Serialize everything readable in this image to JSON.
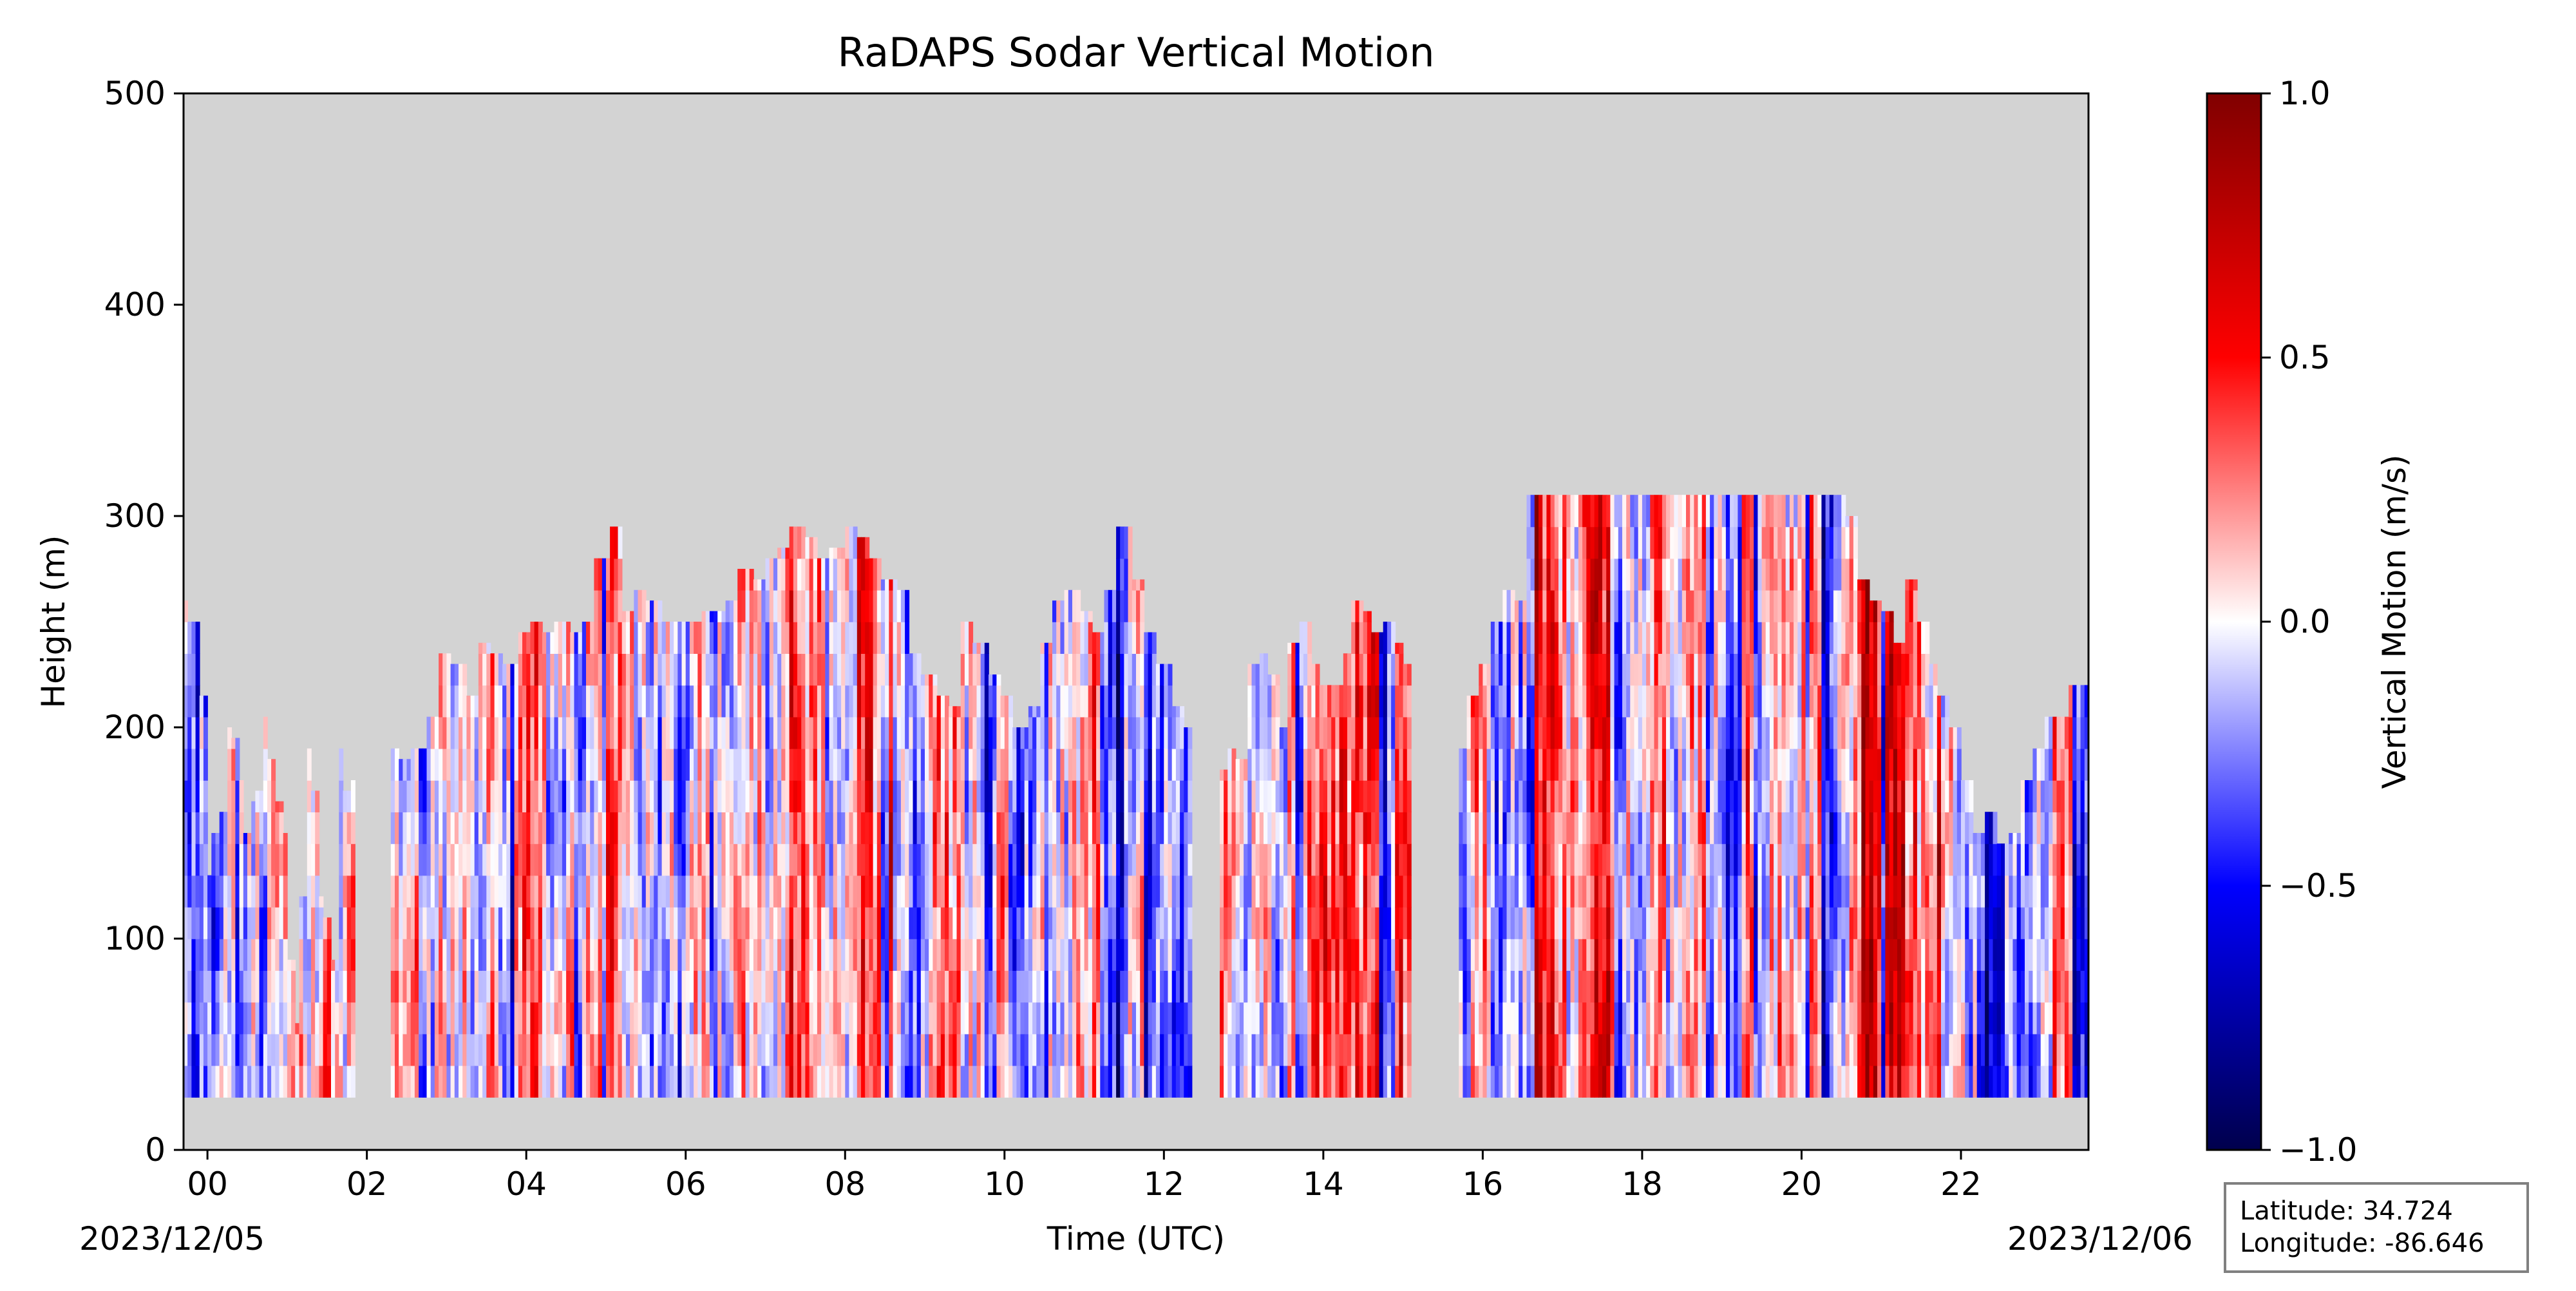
{
  "chart_data": {
    "type": "heatmap",
    "title": "RaDAPS Sodar Vertical Motion",
    "xlabel": "Time (UTC)",
    "ylabel": "Height (m)",
    "x_unit": "hours UTC",
    "xlim": [
      -0.3,
      23.6
    ],
    "ylim": [
      0,
      500
    ],
    "x_ticks": [
      {
        "value": 0,
        "label": "00"
      },
      {
        "value": 2,
        "label": "02"
      },
      {
        "value": 4,
        "label": "04"
      },
      {
        "value": 6,
        "label": "06"
      },
      {
        "value": 8,
        "label": "08"
      },
      {
        "value": 10,
        "label": "10"
      },
      {
        "value": 12,
        "label": "12"
      },
      {
        "value": 14,
        "label": "14"
      },
      {
        "value": 16,
        "label": "16"
      },
      {
        "value": 18,
        "label": "18"
      },
      {
        "value": 20,
        "label": "20"
      },
      {
        "value": 22,
        "label": "22"
      }
    ],
    "y_ticks": [
      0,
      100,
      200,
      300,
      400,
      500
    ],
    "date_start": "2023/12/05",
    "date_end": "2023/12/06",
    "colorbar": {
      "label": "Vertical Motion (m/s)",
      "colormap": "seismic",
      "range": [
        -1.0,
        1.0
      ],
      "ticks": [
        {
          "value": 1.0,
          "label": "1.0"
        },
        {
          "value": 0.5,
          "label": "0.5"
        },
        {
          "value": 0.0,
          "label": "0.0"
        },
        {
          "value": -0.5,
          "label": "−0.5"
        },
        {
          "value": -1.0,
          "label": "−1.0"
        }
      ],
      "colors": {
        "min": "#00004c",
        "low": "#0000ff",
        "mid": "#ffffff",
        "high": "#ff0000",
        "max": "#800000"
      }
    },
    "background_color": "#d3d3d3",
    "data_bottom_height": 25,
    "segments": [
      {
        "start": -0.3,
        "end": 1.85,
        "top_heights": [
          260,
          250,
          250,
          215,
          130,
          150,
          160,
          200,
          195,
          175,
          150,
          165,
          170,
          205,
          185,
          165,
          150,
          90,
          60,
          120,
          190,
          170,
          120,
          110,
          90,
          190,
          170,
          175
        ]
      },
      {
        "start": 2.3,
        "end": 12.35,
        "top_heights": [
          190,
          185,
          190,
          205,
          235,
          230,
          215,
          240,
          235,
          230,
          245,
          250,
          245,
          250,
          245,
          250,
          280,
          295,
          255,
          265,
          260,
          250,
          250,
          250,
          255,
          255,
          260,
          275,
          270,
          280,
          285,
          295,
          290,
          280,
          285,
          295,
          290,
          280,
          270,
          265,
          235,
          225,
          215,
          210,
          250,
          240,
          225,
          215,
          200,
          210,
          240,
          260,
          265,
          255,
          245,
          265,
          295,
          270,
          245,
          230,
          210,
          200
        ]
      },
      {
        "start": 12.7,
        "end": 15.1,
        "top_heights": [
          180,
          190,
          185,
          230,
          235,
          225,
          200,
          240,
          250,
          230,
          220,
          220,
          235,
          260,
          255,
          245,
          250,
          240,
          230
        ]
      },
      {
        "start": 15.7,
        "end": 23.6,
        "top_heights": [
          190,
          215,
          230,
          250,
          265,
          260,
          310,
          310,
          310,
          310,
          310,
          310,
          310,
          310,
          310,
          310,
          310,
          310,
          310,
          310,
          310,
          310,
          310,
          310,
          310,
          310,
          310,
          310,
          310,
          310,
          310,
          310,
          310,
          300,
          270,
          260,
          255,
          240,
          270,
          250,
          230,
          215,
          200,
          175,
          150,
          160,
          145,
          150,
          175,
          190,
          205,
          205,
          220,
          220
        ]
      }
    ]
  },
  "info_box": {
    "latitude": "Latitude: 34.724",
    "longitude": "Longitude: -86.646"
  }
}
